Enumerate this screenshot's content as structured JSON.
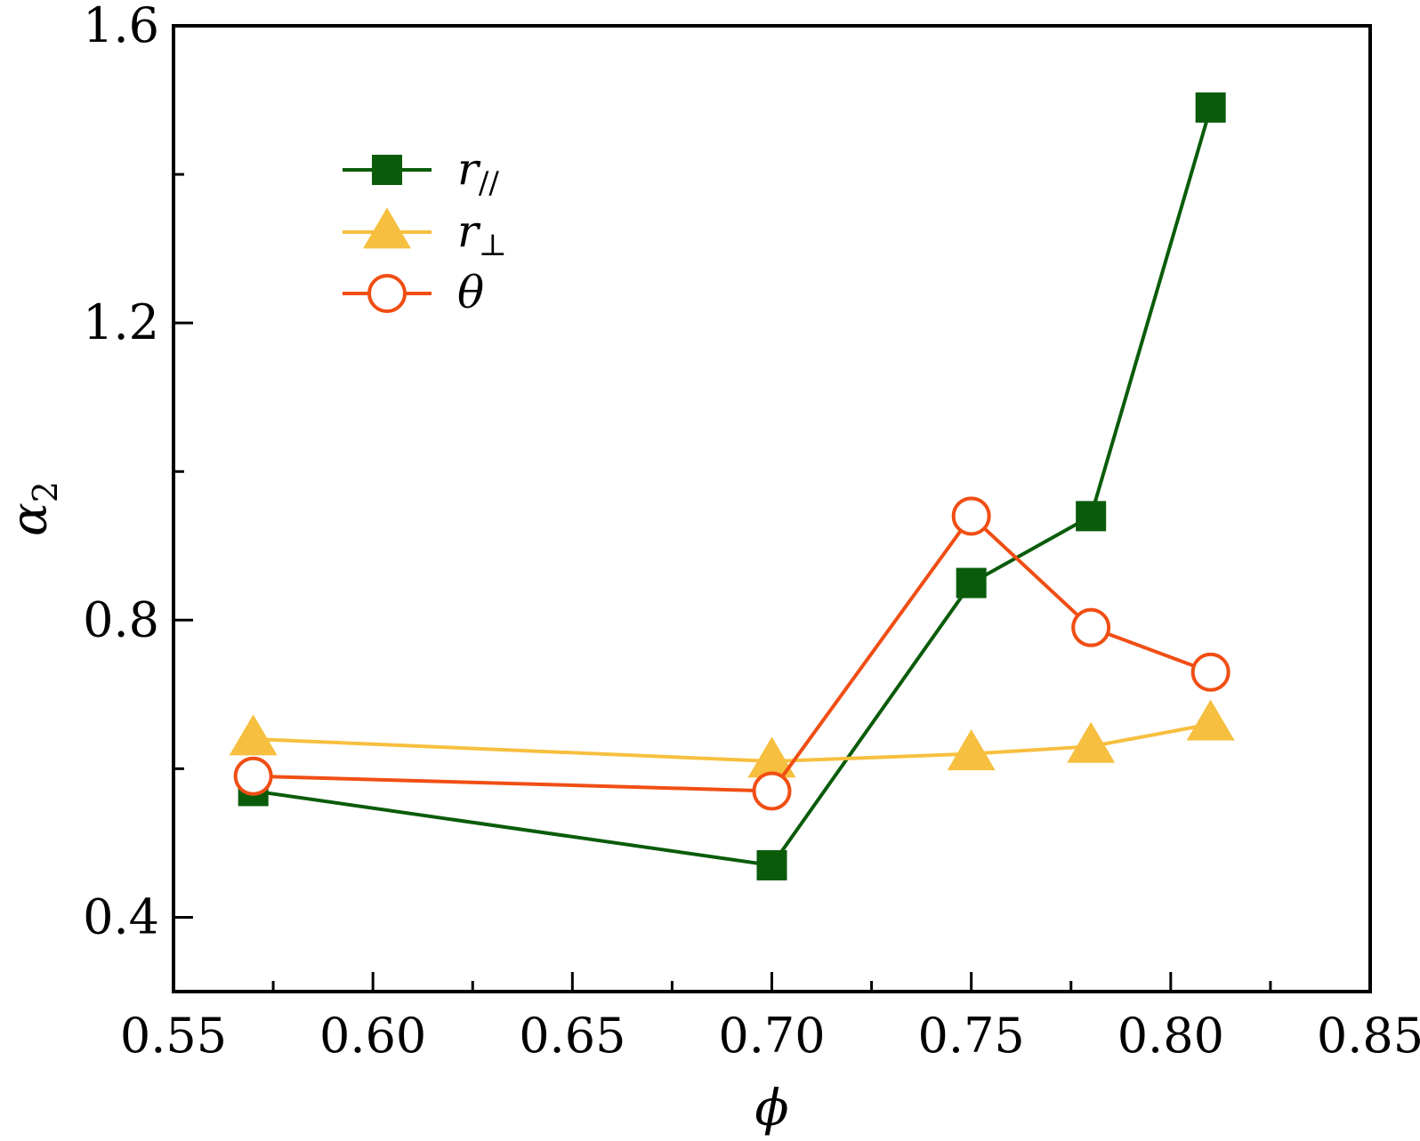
{
  "chart_data": {
    "type": "line",
    "title": "",
    "xlabel": "ϕ",
    "ylabel": "α",
    "ylabel_sub": "2",
    "xlim": [
      0.55,
      0.85
    ],
    "ylim": [
      0.3,
      1.6
    ],
    "xticks": [
      0.55,
      0.6,
      0.65,
      0.7,
      0.75,
      0.8,
      0.85
    ],
    "xtick_labels": [
      "0.55",
      "0.60",
      "0.65",
      "0.70",
      "0.75",
      "0.80",
      "0.85"
    ],
    "xminor": [
      0.575,
      0.625,
      0.675,
      0.725,
      0.775,
      0.825
    ],
    "yticks": [
      0.4,
      0.8,
      1.2,
      1.6
    ],
    "ytick_labels": [
      "0.4",
      "0.8",
      "1.2",
      "1.6"
    ],
    "yminor": [
      0.6,
      1.0,
      1.4
    ],
    "grid": false,
    "legend_position": "top-left",
    "series": [
      {
        "name": "r",
        "name_sub": "//",
        "marker": "square",
        "color": "#0a5c0a",
        "x": [
          0.57,
          0.7,
          0.75,
          0.78,
          0.81
        ],
        "y": [
          0.57,
          0.47,
          0.85,
          0.94,
          1.49
        ]
      },
      {
        "name": "r",
        "name_sub": "⊥",
        "marker": "triangle",
        "color": "#f7bf3f",
        "x": [
          0.57,
          0.7,
          0.75,
          0.78,
          0.81
        ],
        "y": [
          0.64,
          0.61,
          0.62,
          0.63,
          0.66
        ]
      },
      {
        "name": "θ",
        "name_sub": "",
        "marker": "circle-open",
        "color": "#f04e14",
        "x": [
          0.57,
          0.7,
          0.75,
          0.78,
          0.81
        ],
        "y": [
          0.59,
          0.57,
          0.94,
          0.79,
          0.73
        ]
      }
    ]
  }
}
